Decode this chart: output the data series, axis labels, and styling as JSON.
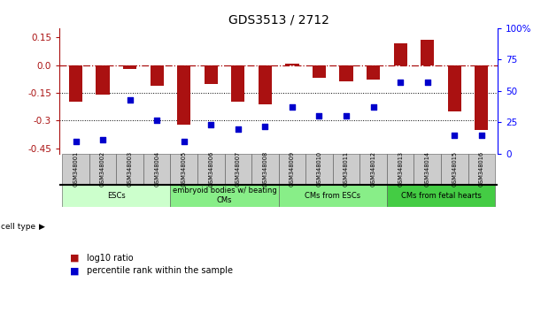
{
  "title": "GDS3513 / 2712",
  "samples": [
    "GSM348001",
    "GSM348002",
    "GSM348003",
    "GSM348004",
    "GSM348005",
    "GSM348006",
    "GSM348007",
    "GSM348008",
    "GSM348009",
    "GSM348010",
    "GSM348011",
    "GSM348012",
    "GSM348013",
    "GSM348014",
    "GSM348015",
    "GSM348016"
  ],
  "log10_ratio": [
    -0.2,
    -0.16,
    -0.02,
    -0.11,
    -0.32,
    -0.1,
    -0.2,
    -0.21,
    0.01,
    -0.07,
    -0.09,
    -0.08,
    0.12,
    0.135,
    -0.25,
    -0.35
  ],
  "percentile_rank": [
    10,
    11,
    43,
    27,
    10,
    23,
    20,
    22,
    37,
    30,
    30,
    37,
    57,
    57,
    15,
    15
  ],
  "cell_types": [
    {
      "label": "ESCs",
      "start": 0,
      "end": 4,
      "color": "#ccffcc"
    },
    {
      "label": "embryoid bodies w/ beating\nCMs",
      "start": 4,
      "end": 8,
      "color": "#88ee88"
    },
    {
      "label": "CMs from ESCs",
      "start": 8,
      "end": 12,
      "color": "#88ee88"
    },
    {
      "label": "CMs from fetal hearts",
      "start": 12,
      "end": 16,
      "color": "#44cc44"
    }
  ],
  "bar_color": "#aa1111",
  "dot_color": "#0000cc",
  "dotted_lines": [
    -0.15,
    -0.3
  ],
  "ylim_left": [
    -0.48,
    0.2
  ],
  "ylim_right": [
    0,
    100
  ],
  "yticks_left": [
    0.15,
    0.0,
    -0.15,
    -0.3,
    -0.45
  ],
  "yticks_right": [
    0,
    25,
    50,
    75,
    100
  ],
  "legend_log10": "log10 ratio",
  "legend_pct": "percentile rank within the sample",
  "bar_width": 0.5,
  "sample_box_color": "#cccccc",
  "title_fontsize": 10,
  "axis_fontsize": 8,
  "tick_fontsize": 7.5
}
